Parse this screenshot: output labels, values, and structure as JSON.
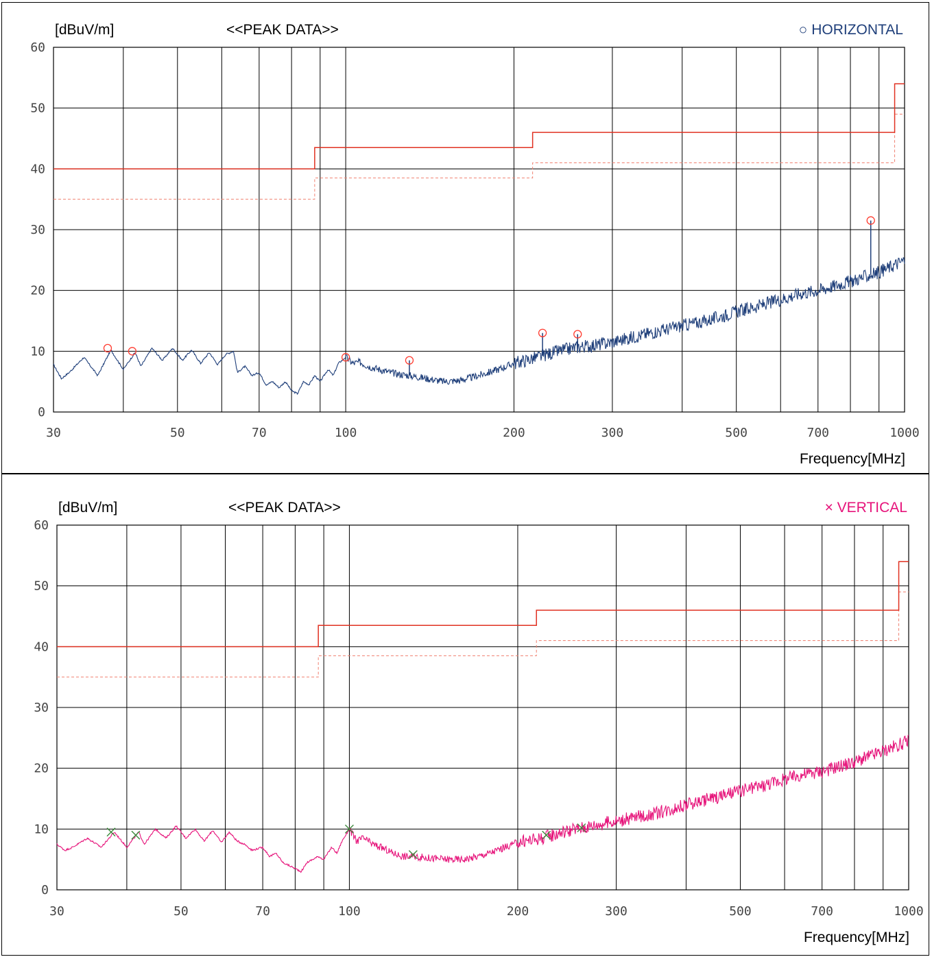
{
  "chart_data": [
    {
      "type": "line",
      "ylabel": "[dBuV/m]",
      "title": "<<PEAK DATA>>",
      "xlabel": "Frequency[MHz]",
      "legend": {
        "symbol": "○",
        "label": "HORIZONTAL",
        "color": "#1f3f7a",
        "placement": "top-right"
      },
      "x_scale": "log",
      "xlim": [
        30,
        1000
      ],
      "ylim": [
        0,
        60
      ],
      "y_ticks": [
        0,
        10,
        20,
        30,
        40,
        50,
        60
      ],
      "x_ticks": [
        30,
        50,
        70,
        100,
        200,
        300,
        500,
        700,
        1000
      ],
      "x_gridlines": [
        30,
        40,
        50,
        60,
        70,
        80,
        90,
        100,
        200,
        300,
        400,
        500,
        600,
        700,
        800,
        900,
        1000
      ],
      "grid": true,
      "series": [
        {
          "color": "#1f3f7a",
          "points": [
            [
              30,
              7.8
            ],
            [
              31,
              5.5
            ],
            [
              32,
              6.5
            ],
            [
              34,
              9.0
            ],
            [
              36,
              6.0
            ],
            [
              38,
              10.2
            ],
            [
              40,
              7.0
            ],
            [
              42,
              9.8
            ],
            [
              43,
              7.5
            ],
            [
              45,
              10.5
            ],
            [
              47,
              8.5
            ],
            [
              49,
              10.5
            ],
            [
              51,
              8.5
            ],
            [
              53,
              10.2
            ],
            [
              55,
              8.0
            ],
            [
              57,
              9.8
            ],
            [
              59,
              7.8
            ],
            [
              61,
              9.5
            ],
            [
              63,
              10.0
            ],
            [
              64,
              6.5
            ],
            [
              66,
              7.5
            ],
            [
              68,
              6.0
            ],
            [
              70,
              6.5
            ],
            [
              72,
              4.5
            ],
            [
              74,
              5.0
            ],
            [
              76,
              4.0
            ],
            [
              78,
              5.0
            ],
            [
              80,
              3.5
            ],
            [
              82,
              3.0
            ],
            [
              84,
              5.0
            ],
            [
              86,
              4.5
            ],
            [
              88,
              6.0
            ],
            [
              90,
              5.0
            ],
            [
              93,
              7.0
            ],
            [
              95,
              6.0
            ],
            [
              97,
              8.0
            ],
            [
              100,
              9.0
            ],
            [
              103,
              8.0
            ],
            [
              106,
              8.2
            ],
            [
              110,
              7.5
            ],
            [
              115,
              7.0
            ],
            [
              120,
              6.5
            ],
            [
              125,
              6.2
            ],
            [
              130,
              6.0
            ],
            [
              140,
              5.5
            ],
            [
              150,
              5.0
            ],
            [
              160,
              5.2
            ],
            [
              170,
              5.8
            ],
            [
              180,
              6.5
            ],
            [
              190,
              7.2
            ],
            [
              200,
              8.0
            ],
            [
              220,
              9.0
            ],
            [
              240,
              10.0
            ],
            [
              260,
              10.7
            ],
            [
              280,
              11.0
            ],
            [
              300,
              11.5
            ],
            [
              350,
              13.0
            ],
            [
              400,
              14.2
            ],
            [
              450,
              15.2
            ],
            [
              500,
              16.5
            ],
            [
              550,
              17.5
            ],
            [
              600,
              18.5
            ],
            [
              650,
              19.5
            ],
            [
              700,
              20.0
            ],
            [
              800,
              21.5
            ],
            [
              900,
              23.0
            ],
            [
              1000,
              25.0
            ]
          ],
          "spikes": [
            [
              130,
              8.5
            ],
            [
              225,
              13.0
            ],
            [
              260,
              12.8
            ],
            [
              870,
              31.5
            ]
          ]
        }
      ],
      "peak_markers": [
        [
          37.5,
          10.5
        ],
        [
          41.5,
          10.0
        ],
        [
          100,
          9.0
        ],
        [
          130,
          8.5
        ],
        [
          225,
          13.0
        ],
        [
          260,
          12.8
        ],
        [
          870,
          31.5
        ]
      ],
      "limit_line": {
        "color": "#e03020",
        "steps": [
          [
            30,
            40.0
          ],
          [
            88,
            43.5
          ],
          [
            216,
            46.0
          ],
          [
            960,
            54.0
          ],
          [
            1000,
            54.0
          ]
        ]
      },
      "margin_line": {
        "color": "#f08070",
        "style": "dashed",
        "steps": [
          [
            30,
            35.0
          ],
          [
            88,
            38.5
          ],
          [
            216,
            41.0
          ],
          [
            960,
            49.0
          ],
          [
            1000,
            49.0
          ]
        ]
      }
    },
    {
      "type": "line",
      "ylabel": "[dBuV/m]",
      "title": "<<PEAK DATA>>",
      "xlabel": "Frequency[MHz]",
      "legend": {
        "symbol": "×",
        "label": "VERTICAL",
        "color": "#e6137a",
        "placement": "top-right"
      },
      "x_scale": "log",
      "xlim": [
        30,
        1000
      ],
      "ylim": [
        0,
        60
      ],
      "y_ticks": [
        0,
        10,
        20,
        30,
        40,
        50,
        60
      ],
      "x_ticks": [
        30,
        50,
        70,
        100,
        200,
        300,
        500,
        700,
        1000
      ],
      "x_gridlines": [
        30,
        40,
        50,
        60,
        70,
        80,
        90,
        100,
        200,
        300,
        400,
        500,
        600,
        700,
        800,
        900,
        1000
      ],
      "grid": true,
      "series": [
        {
          "color": "#e6137a",
          "points": [
            [
              30,
              7.5
            ],
            [
              31,
              6.5
            ],
            [
              32,
              7.0
            ],
            [
              34,
              8.5
            ],
            [
              36,
              7.0
            ],
            [
              38,
              9.5
            ],
            [
              40,
              7.0
            ],
            [
              42,
              9.5
            ],
            [
              43,
              7.5
            ],
            [
              45,
              10.0
            ],
            [
              47,
              8.5
            ],
            [
              49,
              10.5
            ],
            [
              51,
              8.5
            ],
            [
              53,
              10.0
            ],
            [
              55,
              8.0
            ],
            [
              57,
              9.8
            ],
            [
              59,
              7.8
            ],
            [
              61,
              9.5
            ],
            [
              63,
              8.0
            ],
            [
              65,
              7.5
            ],
            [
              67,
              6.5
            ],
            [
              70,
              7.0
            ],
            [
              72,
              5.5
            ],
            [
              74,
              6.0
            ],
            [
              76,
              4.5
            ],
            [
              78,
              4.0
            ],
            [
              80,
              3.5
            ],
            [
              82,
              3.0
            ],
            [
              84,
              4.5
            ],
            [
              86,
              5.0
            ],
            [
              88,
              5.5
            ],
            [
              90,
              5.0
            ],
            [
              93,
              7.0
            ],
            [
              95,
              6.0
            ],
            [
              97,
              8.0
            ],
            [
              100,
              10.0
            ],
            [
              103,
              8.0
            ],
            [
              106,
              8.5
            ],
            [
              110,
              7.5
            ],
            [
              115,
              6.8
            ],
            [
              120,
              6.0
            ],
            [
              125,
              5.5
            ],
            [
              130,
              5.5
            ],
            [
              140,
              5.2
            ],
            [
              150,
              5.0
            ],
            [
              160,
              5.0
            ],
            [
              170,
              5.5
            ],
            [
              180,
              6.2
            ],
            [
              190,
              7.0
            ],
            [
              200,
              7.8
            ],
            [
              220,
              8.5
            ],
            [
              240,
              9.5
            ],
            [
              260,
              10.2
            ],
            [
              280,
              10.8
            ],
            [
              300,
              11.3
            ],
            [
              350,
              12.5
            ],
            [
              400,
              14.0
            ],
            [
              450,
              15.2
            ],
            [
              500,
              16.2
            ],
            [
              550,
              17.2
            ],
            [
              600,
              18.2
            ],
            [
              650,
              19.0
            ],
            [
              700,
              19.5
            ],
            [
              800,
              21.0
            ],
            [
              900,
              22.8
            ],
            [
              1000,
              24.5
            ]
          ],
          "spikes": []
        }
      ],
      "peak_markers": [
        [
          37.5,
          9.5
        ],
        [
          41.5,
          9.0
        ],
        [
          100,
          10.0
        ],
        [
          130,
          5.8
        ],
        [
          225,
          9.0
        ],
        [
          260,
          10.2
        ]
      ],
      "limit_line": {
        "color": "#e03020",
        "steps": [
          [
            30,
            40.0
          ],
          [
            88,
            43.5
          ],
          [
            216,
            46.0
          ],
          [
            960,
            54.0
          ],
          [
            1000,
            54.0
          ]
        ]
      },
      "margin_line": {
        "color": "#f08070",
        "style": "dashed",
        "steps": [
          [
            30,
            35.0
          ],
          [
            88,
            38.5
          ],
          [
            216,
            41.0
          ],
          [
            960,
            49.0
          ],
          [
            1000,
            49.0
          ]
        ]
      }
    }
  ]
}
